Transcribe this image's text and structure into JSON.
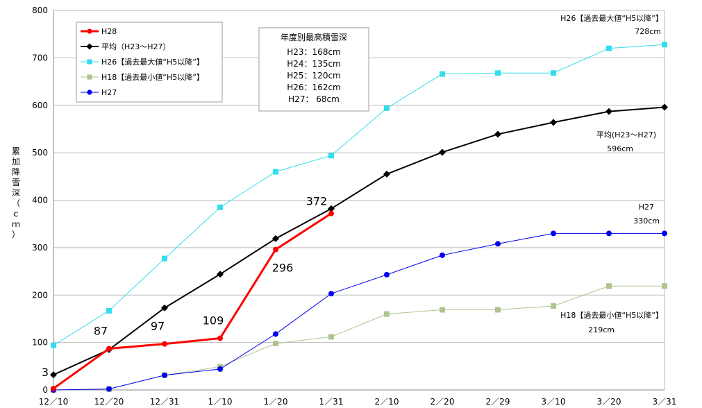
{
  "chart_data": {
    "type": "line",
    "ylabel": "累加降雪深（ｃｍ）",
    "ylim": [
      0,
      800
    ],
    "y_ticks": [
      "0",
      "100",
      "200",
      "300",
      "400",
      "500",
      "600",
      "700",
      "800"
    ],
    "categories": [
      "12／10",
      "12／20",
      "12／31",
      "1／10",
      "1／20",
      "1／31",
      "2／10",
      "2／20",
      "2／29",
      "3／10",
      "3／20",
      "3／31"
    ],
    "grid": true,
    "legend_placement": "top-left",
    "series": [
      {
        "name": "H28",
        "color": "#ff0000",
        "marker": "circle",
        "width": 3,
        "values": [
          3,
          87,
          97,
          109,
          296,
          372,
          null,
          null,
          null,
          null,
          null,
          null
        ]
      },
      {
        "name": "平均（H23～H27）",
        "color": "#000000",
        "marker": "diamond",
        "width": 2,
        "values": [
          32,
          85,
          173,
          244,
          319,
          382,
          455,
          501,
          539,
          564,
          587,
          596
        ]
      },
      {
        "name": "H26【過去最大値“H5以降”】",
        "color": "#33ddee",
        "marker": "square",
        "width": 1,
        "values": [
          94,
          167,
          277,
          385,
          460,
          494,
          594,
          666,
          668,
          668,
          720,
          728
        ]
      },
      {
        "name": "H18【過去最小値“H5以降”】",
        "color": "#b0c490",
        "marker": "square",
        "width": 1,
        "values": [
          0,
          2,
          31,
          49,
          98,
          112,
          160,
          169,
          169,
          177,
          219,
          219
        ]
      },
      {
        "name": "H27",
        "color": "#0000ee",
        "marker": "circle",
        "width": 1,
        "values": [
          0,
          2,
          31,
          44,
          118,
          203,
          243,
          284,
          308,
          330,
          330,
          330
        ]
      }
    ],
    "data_labels": [
      {
        "series": 0,
        "index": 0,
        "text": "3"
      },
      {
        "series": 0,
        "index": 1,
        "text": "87"
      },
      {
        "series": 0,
        "index": 2,
        "text": "97"
      },
      {
        "series": 0,
        "index": 3,
        "text": "109"
      },
      {
        "series": 0,
        "index": 4,
        "text": "296"
      },
      {
        "series": 0,
        "index": 5,
        "text": "372"
      }
    ],
    "info_box": {
      "title": "年度別最高積雪深",
      "lines": [
        "H23：168cm",
        "H24：135cm",
        "H25：120cm",
        "H26：162cm",
        "H27： 68cm"
      ]
    },
    "annotations": {
      "h26_line1": "H26【過去最大値“H5以降”】",
      "h26_line2": "728cm",
      "avg_line1": "平均(H23～H27)",
      "avg_line2": "596cm",
      "h27_line1": "H27",
      "h27_line2": "330cm",
      "h18_line1": "H18【過去最小値“H5以降”】",
      "h18_line2": "219cm"
    },
    "colors": {
      "annotation_blue": "#0000ee"
    }
  }
}
